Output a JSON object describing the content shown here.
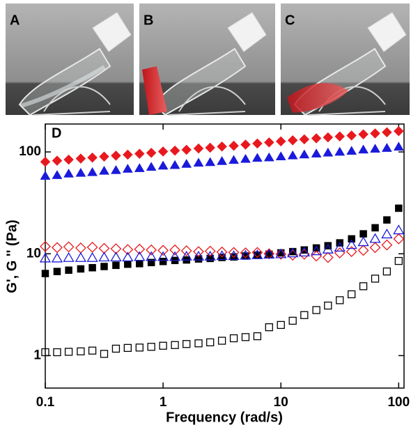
{
  "chart_data": {
    "type": "scatter",
    "photo_labels": [
      "A",
      "B",
      "C"
    ],
    "panel_label": "D",
    "xlabel": "Frequency (rad/s)",
    "ylabel": "G', G '' (Pa)",
    "xscale": "log",
    "yscale": "log",
    "xlim": [
      0.1,
      111
    ],
    "ylim": [
      0.48,
      188
    ],
    "xticks": [
      0.1,
      1,
      10,
      100
    ],
    "yticks": [
      1,
      10,
      100
    ],
    "x": [
      0.1,
      0.126,
      0.158,
      0.2,
      0.251,
      0.316,
      0.398,
      0.501,
      0.631,
      0.794,
      1,
      1.26,
      1.58,
      2,
      2.51,
      3.16,
      3.98,
      5.01,
      6.31,
      7.94,
      10,
      12.6,
      15.8,
      20,
      25.1,
      31.6,
      39.8,
      50.1,
      63.1,
      79.4,
      100
    ],
    "series": [
      {
        "color": "#e8191e",
        "marker": "diamond",
        "filled": true,
        "values": [
          80,
          82,
          84,
          86,
          88,
          90,
          92,
          94,
          96,
          98,
          101,
          103,
          105,
          108,
          110,
          113,
          115,
          118,
          121,
          124,
          127,
          130,
          133,
          136,
          139,
          142,
          145,
          149,
          152,
          156,
          160
        ]
      },
      {
        "color": "#1a1adb",
        "marker": "triangle",
        "filled": true,
        "values": [
          58,
          59,
          61,
          62,
          63,
          65,
          66,
          68,
          69,
          71,
          73,
          74,
          76,
          78,
          79,
          81,
          83,
          85,
          87,
          88,
          90,
          92,
          94,
          96,
          98,
          100,
          102,
          105,
          107,
          109,
          112
        ]
      },
      {
        "color": "#000000",
        "marker": "square",
        "filled": true,
        "values": [
          6.4,
          6.7,
          6.9,
          7.1,
          7.3,
          7.5,
          7.7,
          7.9,
          8.0,
          8.2,
          8.4,
          8.6,
          8.7,
          8.9,
          9.0,
          9.2,
          9.3,
          9.5,
          9.7,
          9.9,
          10.2,
          10.5,
          10.9,
          11.4,
          12.0,
          12.8,
          14.0,
          15.7,
          18.0,
          21.5,
          28
        ]
      },
      {
        "color": "#e8191e",
        "marker": "diamond",
        "filled": false,
        "values": [
          11.8,
          11.5,
          11.7,
          11.4,
          11.6,
          11.3,
          11.2,
          11.0,
          11.1,
          10.9,
          10.8,
          10.9,
          10.7,
          10.5,
          10.6,
          10.4,
          10.3,
          10.2,
          10.3,
          10.0,
          9.9,
          9.7,
          9.9,
          9.5,
          9.2,
          10.2,
          10.5,
          10.8,
          11.5,
          12.2,
          14
        ]
      },
      {
        "color": "#1a1adb",
        "marker": "triangle",
        "filled": false,
        "values": [
          9.0,
          9.0,
          9.1,
          9.1,
          9.1,
          9.2,
          9.2,
          9.2,
          9.3,
          9.3,
          9.3,
          9.3,
          9.4,
          9.4,
          9.4,
          9.5,
          9.5,
          9.6,
          9.7,
          9.8,
          9.9,
          10.1,
          10.3,
          10.6,
          11.0,
          11.5,
          12.2,
          13.0,
          14.0,
          15.5,
          17
        ]
      },
      {
        "color": "#000000",
        "marker": "square",
        "filled": false,
        "values": [
          1.08,
          1.08,
          1.09,
          1.1,
          1.12,
          1.04,
          1.17,
          1.19,
          1.2,
          1.22,
          1.25,
          1.27,
          1.3,
          1.32,
          1.35,
          1.4,
          1.48,
          1.52,
          1.55,
          1.9,
          2.0,
          2.2,
          2.5,
          2.8,
          3.1,
          3.5,
          4.0,
          4.8,
          5.7,
          6.7,
          8.5
        ]
      }
    ]
  }
}
